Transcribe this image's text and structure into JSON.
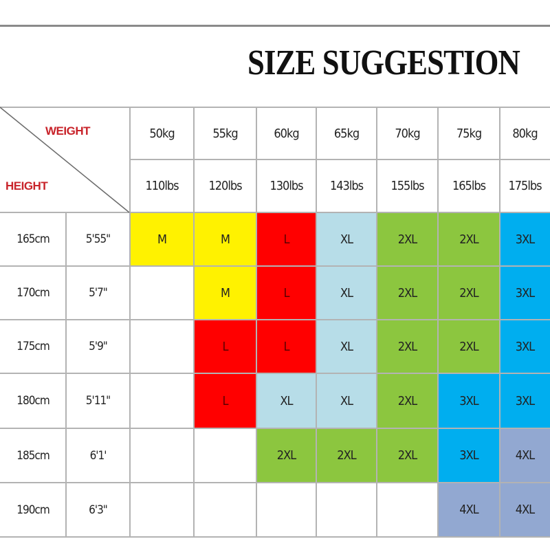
{
  "title": "SIZE SUGGESTION",
  "corner": {
    "weight_label": "WEIGHT",
    "height_label": "HEIGHT"
  },
  "weights_kg": [
    "50kg",
    "55kg",
    "60kg",
    "65kg",
    "70kg",
    "75kg",
    "80kg"
  ],
  "weights_lbs": [
    "110lbs",
    "120lbs",
    "130lbs",
    "143lbs",
    "155lbs",
    "165lbs",
    "175lbs"
  ],
  "rows": [
    {
      "cm": "165cm",
      "ft": "5'55\"",
      "sizes": [
        "M",
        "M",
        "L",
        "XL",
        "2XL",
        "2XL",
        "3XL"
      ]
    },
    {
      "cm": "170cm",
      "ft": "5'7\"",
      "sizes": [
        "",
        "M",
        "L",
        "XL",
        "2XL",
        "2XL",
        "3XL"
      ]
    },
    {
      "cm": "175cm",
      "ft": "5'9\"",
      "sizes": [
        "",
        "L",
        "L",
        "XL",
        "2XL",
        "2XL",
        "3XL"
      ]
    },
    {
      "cm": "180cm",
      "ft": "5'11\"",
      "sizes": [
        "",
        "L",
        "XL",
        "XL",
        "2XL",
        "3XL",
        "3XL"
      ]
    },
    {
      "cm": "185cm",
      "ft": "6'1'",
      "sizes": [
        "",
        "",
        "2XL",
        "2XL",
        "2XL",
        "3XL",
        "4XL"
      ]
    },
    {
      "cm": "190cm",
      "ft": "6'3\"",
      "sizes": [
        "",
        "",
        "",
        "",
        "",
        "4XL",
        "4XL"
      ]
    }
  ],
  "size_colors": {
    "M": "#fff200",
    "L": "#ff0000",
    "XL": "#b7dde8",
    "2XL": "#8cc63f",
    "3XL": "#00aeef",
    "4XL": "#92a8d1"
  }
}
